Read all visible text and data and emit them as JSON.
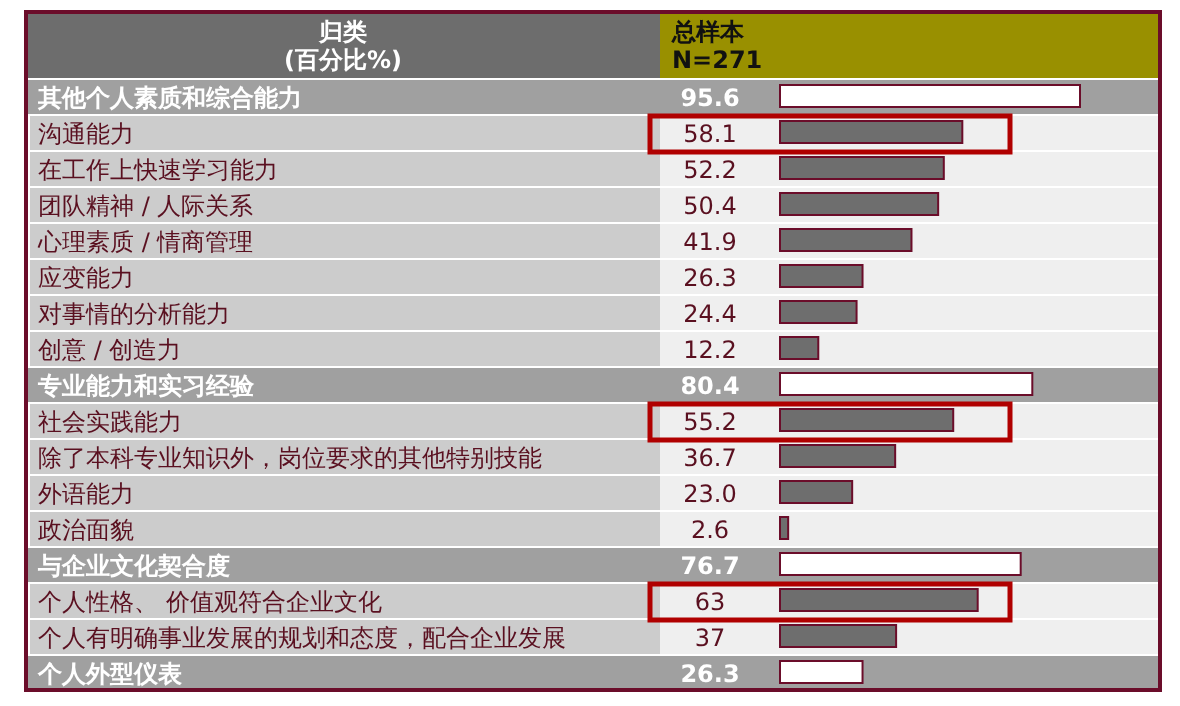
{
  "chart_data": {
    "type": "bar",
    "orientation": "horizontal",
    "ylabel": "归类 (百分比%)",
    "title": "总样本 N=271",
    "categories": [
      "其他个人素质和综合能力",
      "沟通能力",
      "在工作上快速学习能力",
      "团队精神 / 人际关系",
      "心理素质 / 情商管理",
      "应变能力",
      "对事情的分析能力",
      "创意 / 创造力",
      "专业能力和实习经验",
      "社会实践能力",
      "除了本科专业知识外，岗位要求的其他特别技能",
      "外语能力",
      "政治面貌",
      "与企业文化契合度",
      "个人性格、 价值观符合企业文化",
      "个人有明确事业发展的规划和态度，配合企业发展",
      "个人外型仪表"
    ],
    "values": [
      95.6,
      58.1,
      52.2,
      50.4,
      41.9,
      26.3,
      24.4,
      12.2,
      80.4,
      55.2,
      36.7,
      23.0,
      2.6,
      76.7,
      63,
      37,
      26.3
    ],
    "value_labels": [
      "95.6",
      "58.1",
      "52.2",
      "50.4",
      "41.9",
      "26.3",
      "24.4",
      "12.2",
      "80.4",
      "55.2",
      "36.7",
      "23.0",
      "2.6",
      "76.7",
      "63",
      "37",
      "26.3"
    ],
    "colors": [
      "#ffffff",
      "#6e6e6e",
      "#6e6e6e",
      "#6e6e6e",
      "#6e6e6e",
      "#6e6e6e",
      "#6e6e6e",
      "#6e6e6e",
      "#ffffff",
      "#6e6e6e",
      "#6e6e6e",
      "#6e6e6e",
      "#6e6e6e",
      "#ffffff",
      "#6e6e6e",
      "#6e6e6e",
      "#ffffff"
    ]
  }
}
